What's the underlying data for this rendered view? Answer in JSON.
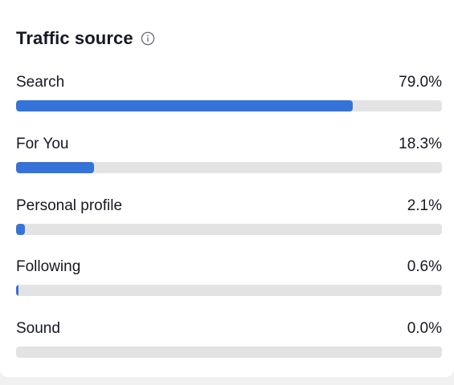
{
  "panel": {
    "title": "Traffic source",
    "info_icon": "info-circle-icon"
  },
  "colors": {
    "bar_fill": "#3573d9",
    "bar_track": "#e3e3e4",
    "text": "#161823"
  },
  "sources": [
    {
      "label": "Search",
      "value": "79.0%",
      "percent": 79.0
    },
    {
      "label": "For You",
      "value": "18.3%",
      "percent": 18.3
    },
    {
      "label": "Personal profile",
      "value": "2.1%",
      "percent": 2.1
    },
    {
      "label": "Following",
      "value": "0.6%",
      "percent": 0.6
    },
    {
      "label": "Sound",
      "value": "0.0%",
      "percent": 0.0
    }
  ]
}
